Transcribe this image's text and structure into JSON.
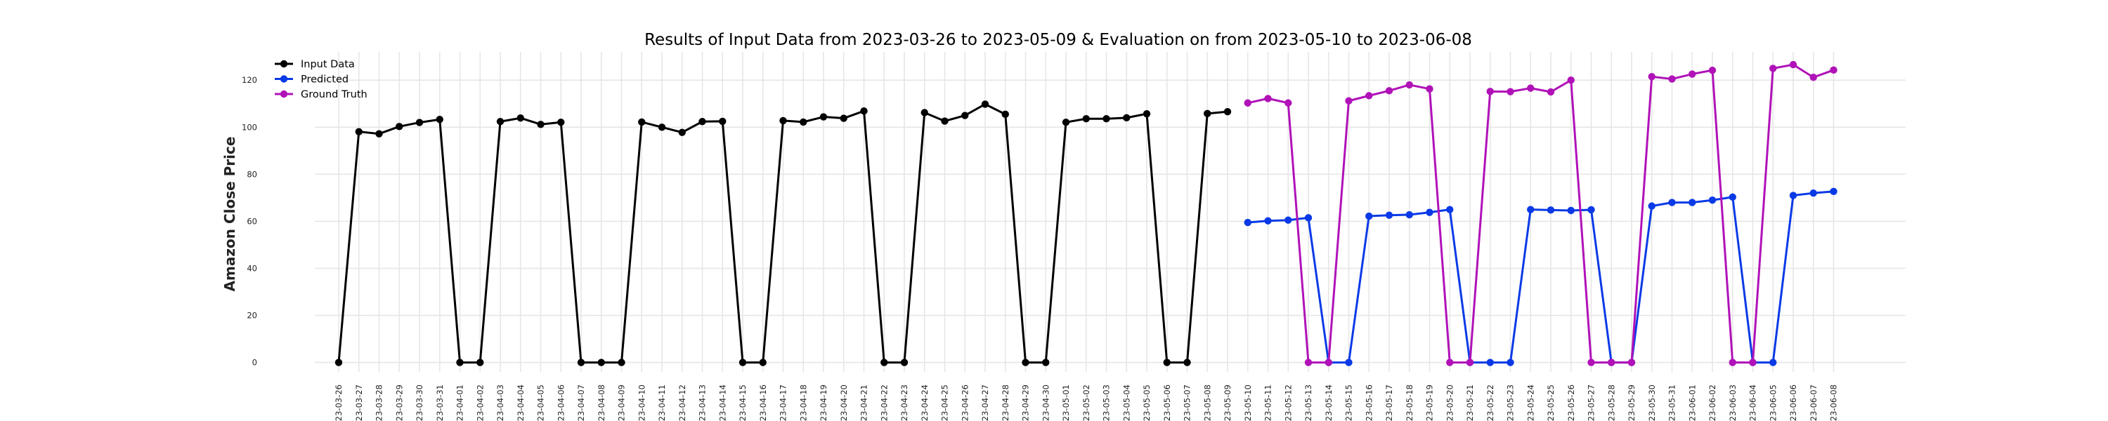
{
  "chart_data": {
    "type": "line",
    "title": "Results of Input Data from 2023-03-26 to 2023-05-09 & Evaluation on from 2023-05-10 to 2023-06-08",
    "xlabel": "",
    "ylabel": "Amazon Close Price",
    "ylim": [
      -4,
      132
    ],
    "yticks": [
      0,
      20,
      40,
      60,
      80,
      100,
      120
    ],
    "grid": true,
    "legend_position": "top-left",
    "x": [
      "2023-03-26",
      "2023-03-27",
      "2023-03-28",
      "2023-03-29",
      "2023-03-30",
      "2023-03-31",
      "2023-04-01",
      "2023-04-02",
      "2023-04-03",
      "2023-04-04",
      "2023-04-05",
      "2023-04-06",
      "2023-04-07",
      "2023-04-08",
      "2023-04-09",
      "2023-04-10",
      "2023-04-11",
      "2023-04-12",
      "2023-04-13",
      "2023-04-14",
      "2023-04-15",
      "2023-04-16",
      "2023-04-17",
      "2023-04-18",
      "2023-04-19",
      "2023-04-20",
      "2023-04-21",
      "2023-04-22",
      "2023-04-23",
      "2023-04-24",
      "2023-04-25",
      "2023-04-26",
      "2023-04-27",
      "2023-04-28",
      "2023-04-29",
      "2023-04-30",
      "2023-05-01",
      "2023-05-02",
      "2023-05-03",
      "2023-05-04",
      "2023-05-05",
      "2023-05-06",
      "2023-05-07",
      "2023-05-08",
      "2023-05-09",
      "2023-05-10",
      "2023-05-11",
      "2023-05-12",
      "2023-05-13",
      "2023-05-14",
      "2023-05-15",
      "2023-05-16",
      "2023-05-17",
      "2023-05-18",
      "2023-05-19",
      "2023-05-20",
      "2023-05-21",
      "2023-05-22",
      "2023-05-23",
      "2023-05-24",
      "2023-05-25",
      "2023-05-26",
      "2023-05-27",
      "2023-05-28",
      "2023-05-29",
      "2023-05-30",
      "2023-05-31",
      "2023-06-01",
      "2023-06-02",
      "2023-06-03",
      "2023-06-04",
      "2023-06-05",
      "2023-06-06",
      "2023-06-07",
      "2023-06-08"
    ],
    "tick_labels": [
      "23-03-26",
      "23-03-27",
      "23-03-28",
      "23-03-29",
      "23-03-30",
      "23-03-31",
      "23-04-01",
      "23-04-02",
      "23-04-03",
      "23-04-04",
      "23-04-05",
      "23-04-06",
      "23-04-07",
      "23-04-08",
      "23-04-09",
      "23-04-10",
      "23-04-11",
      "23-04-12",
      "23-04-13",
      "23-04-14",
      "23-04-15",
      "23-04-16",
      "23-04-17",
      "23-04-18",
      "23-04-19",
      "23-04-20",
      "23-04-21",
      "23-04-22",
      "23-04-23",
      "23-04-24",
      "23-04-25",
      "23-04-26",
      "23-04-27",
      "23-04-28",
      "23-04-29",
      "23-04-30",
      "23-05-01",
      "23-05-02",
      "23-05-03",
      "23-05-04",
      "23-05-05",
      "23-05-06",
      "23-05-07",
      "23-05-08",
      "23-05-09",
      "23-05-10",
      "23-05-11",
      "23-05-12",
      "23-05-13",
      "23-05-14",
      "23-05-15",
      "23-05-16",
      "23-05-17",
      "23-05-18",
      "23-05-19",
      "23-05-20",
      "23-05-21",
      "23-05-22",
      "23-05-23",
      "23-05-24",
      "23-05-25",
      "23-05-26",
      "23-05-27",
      "23-05-28",
      "23-05-29",
      "23-05-30",
      "23-05-31",
      "23-06-01",
      "23-06-02",
      "23-06-03",
      "23-06-04",
      "23-06-05",
      "23-06-06",
      "23-06-07",
      "23-06-08"
    ],
    "series": [
      {
        "name": "Input Data",
        "color": "#000000",
        "x": [
          "2023-03-26",
          "2023-03-27",
          "2023-03-28",
          "2023-03-29",
          "2023-03-30",
          "2023-03-31",
          "2023-04-01",
          "2023-04-02",
          "2023-04-03",
          "2023-04-04",
          "2023-04-05",
          "2023-04-06",
          "2023-04-07",
          "2023-04-08",
          "2023-04-09",
          "2023-04-10",
          "2023-04-11",
          "2023-04-12",
          "2023-04-13",
          "2023-04-14",
          "2023-04-15",
          "2023-04-16",
          "2023-04-17",
          "2023-04-18",
          "2023-04-19",
          "2023-04-20",
          "2023-04-21",
          "2023-04-22",
          "2023-04-23",
          "2023-04-24",
          "2023-04-25",
          "2023-04-26",
          "2023-04-27",
          "2023-04-28",
          "2023-04-29",
          "2023-04-30",
          "2023-05-01",
          "2023-05-02",
          "2023-05-03",
          "2023-05-04",
          "2023-05-05",
          "2023-05-06",
          "2023-05-07",
          "2023-05-08",
          "2023-05-09"
        ],
        "values": [
          0,
          98.1,
          97.2,
          100.3,
          102.0,
          103.3,
          0,
          0,
          102.4,
          103.9,
          101.2,
          102.1,
          0,
          0,
          0,
          102.2,
          100.0,
          97.8,
          102.4,
          102.5,
          0,
          0,
          102.8,
          102.2,
          104.4,
          103.8,
          106.9,
          0,
          0,
          106.2,
          102.6,
          105.0,
          109.8,
          105.5,
          0,
          0,
          102.1,
          103.6,
          103.6,
          104.0,
          105.7,
          0,
          0,
          105.8,
          106.6
        ]
      },
      {
        "name": "Predicted",
        "color": "#0a3ae6",
        "x": [
          "2023-05-10",
          "2023-05-11",
          "2023-05-12",
          "2023-05-13",
          "2023-05-14",
          "2023-05-15",
          "2023-05-16",
          "2023-05-17",
          "2023-05-18",
          "2023-05-19",
          "2023-05-20",
          "2023-05-21",
          "2023-05-22",
          "2023-05-23",
          "2023-05-24",
          "2023-05-25",
          "2023-05-26",
          "2023-05-27",
          "2023-05-28",
          "2023-05-29",
          "2023-05-30",
          "2023-05-31",
          "2023-06-01",
          "2023-06-02",
          "2023-06-03",
          "2023-06-04",
          "2023-06-05",
          "2023-06-06",
          "2023-06-07",
          "2023-06-08"
        ],
        "values": [
          59.5,
          60.2,
          60.5,
          61.5,
          0,
          0,
          62.2,
          62.6,
          62.8,
          63.8,
          65.0,
          0,
          0,
          0,
          65.0,
          64.8,
          64.6,
          64.9,
          0,
          0,
          66.5,
          68.0,
          68.0,
          69.0,
          70.3,
          0,
          0,
          71.0,
          72.0,
          72.7
        ]
      },
      {
        "name": "Ground Truth",
        "color": "#b012b8",
        "x": [
          "2023-05-10",
          "2023-05-11",
          "2023-05-12",
          "2023-05-13",
          "2023-05-14",
          "2023-05-15",
          "2023-05-16",
          "2023-05-17",
          "2023-05-18",
          "2023-05-19",
          "2023-05-20",
          "2023-05-21",
          "2023-05-22",
          "2023-05-23",
          "2023-05-24",
          "2023-05-25",
          "2023-05-26",
          "2023-05-27",
          "2023-05-28",
          "2023-05-29",
          "2023-05-30",
          "2023-05-31",
          "2023-06-01",
          "2023-06-02",
          "2023-06-03",
          "2023-06-04",
          "2023-06-05",
          "2023-06-06",
          "2023-06-07",
          "2023-06-08"
        ],
        "values": [
          110.3,
          112.2,
          110.3,
          0,
          0,
          111.2,
          113.4,
          115.5,
          118.0,
          116.3,
          0,
          0,
          115.2,
          115.1,
          116.6,
          115.0,
          120.0,
          0,
          0,
          0,
          121.5,
          120.5,
          122.6,
          124.2,
          0,
          0,
          125.0,
          126.6,
          121.2,
          124.3
        ]
      }
    ]
  }
}
